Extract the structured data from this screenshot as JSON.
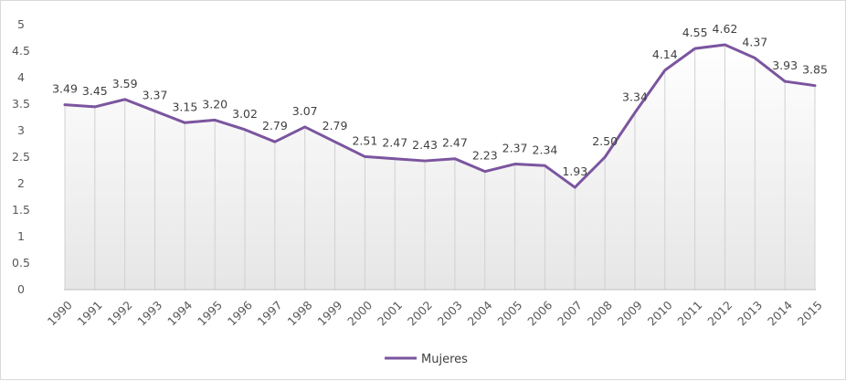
{
  "chart_data": {
    "type": "area",
    "categories": [
      "1990",
      "1991",
      "1992",
      "1993",
      "1994",
      "1995",
      "1996",
      "1997",
      "1998",
      "1999",
      "2000",
      "2001",
      "2002",
      "2003",
      "2004",
      "2005",
      "2006",
      "2007",
      "2008",
      "2009",
      "2010",
      "2011",
      "2012",
      "2013",
      "2014",
      "2015"
    ],
    "series": [
      {
        "name": "Mujeres",
        "values": [
          3.49,
          3.45,
          3.59,
          3.37,
          3.15,
          3.2,
          3.02,
          2.79,
          3.07,
          2.79,
          2.51,
          2.47,
          2.43,
          2.47,
          2.23,
          2.37,
          2.34,
          1.93,
          2.5,
          3.34,
          4.14,
          4.55,
          4.62,
          4.37,
          3.93,
          3.85
        ],
        "labels": [
          "3.49",
          "3.45",
          "3.59",
          "3.37",
          "3.15",
          "3.20",
          "3.02",
          "2.79",
          "3.07",
          "2.79",
          "2.51",
          "2.47",
          "2.43",
          "2.47",
          "2.23",
          "2.37",
          "2.34",
          "1.93",
          "2.50",
          "3.34",
          "4.14",
          "4.55",
          "4.62",
          "4.37",
          "3.93",
          "3.85"
        ]
      }
    ],
    "yticks": [
      "0",
      "0.5",
      "1",
      "1.5",
      "2",
      "2.5",
      "3",
      "3.5",
      "4",
      "4.5",
      "5"
    ],
    "ylim": [
      0,
      5
    ],
    "grid": false,
    "legend": "bottom-center",
    "line_color": "#7b559f",
    "area_gradient": [
      "#ffffff",
      "#e6e6e6"
    ],
    "drop_line_color": "#d0d0d0"
  }
}
